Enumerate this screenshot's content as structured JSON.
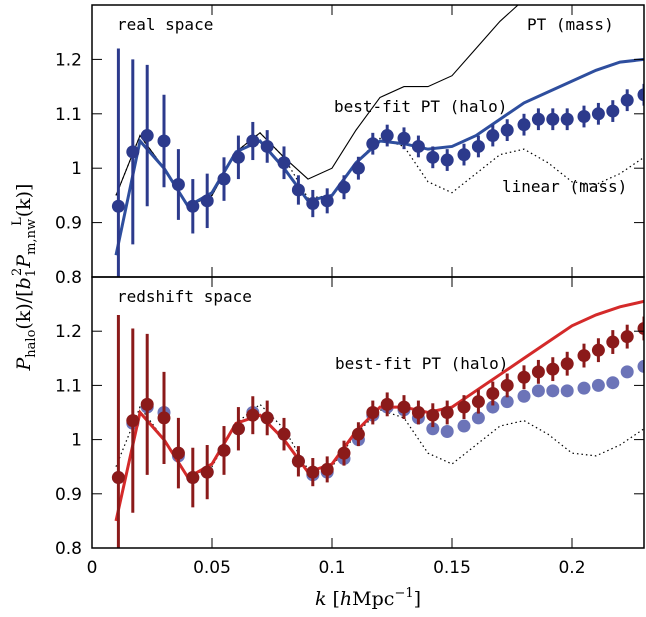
{
  "chart_data": [
    {
      "type": "line",
      "label": "real space",
      "ylabel": [
        "P",
        "halo",
        "(k)/[",
        "b",
        "1",
        "2",
        "P",
        "m,nw",
        "L",
        "(k)]"
      ],
      "xlim": [
        0,
        0.23
      ],
      "ylim": [
        0.8,
        1.3
      ],
      "xticks": [
        0,
        0.05,
        0.1,
        0.15,
        0.2
      ],
      "yticks": [
        0.8,
        0.9,
        1,
        1.1,
        1.2
      ],
      "series": [
        {
          "name": "PT (mass)",
          "color": "#000000",
          "style": "line",
          "x": [
            0.01,
            0.02,
            0.03,
            0.04,
            0.05,
            0.06,
            0.07,
            0.08,
            0.09,
            0.1,
            0.11,
            0.12,
            0.13,
            0.14,
            0.15,
            0.16,
            0.17,
            0.18
          ],
          "values": [
            0.95,
            1.06,
            1.0,
            0.93,
            0.95,
            1.03,
            1.065,
            1.02,
            0.98,
            1.0,
            1.07,
            1.13,
            1.15,
            1.15,
            1.17,
            1.22,
            1.27,
            1.31
          ]
        },
        {
          "name": "linear (mass)",
          "color": "#000000",
          "style": "dotted",
          "x": [
            0.01,
            0.02,
            0.03,
            0.04,
            0.05,
            0.06,
            0.07,
            0.08,
            0.09,
            0.1,
            0.11,
            0.12,
            0.13,
            0.14,
            0.15,
            0.16,
            0.17,
            0.18,
            0.19,
            0.2,
            0.21,
            0.22,
            0.23
          ],
          "values": [
            0.95,
            1.06,
            1.0,
            0.93,
            0.95,
            1.03,
            1.065,
            1.02,
            0.945,
            0.95,
            1.01,
            1.055,
            1.04,
            0.975,
            0.955,
            0.99,
            1.025,
            1.035,
            1.01,
            0.975,
            0.97,
            0.99,
            1.02
          ]
        },
        {
          "name": "best-fit PT (halo)",
          "color": "#2e4e9e",
          "style": "line",
          "x": [
            0.01,
            0.02,
            0.03,
            0.04,
            0.05,
            0.06,
            0.07,
            0.08,
            0.09,
            0.1,
            0.11,
            0.12,
            0.13,
            0.14,
            0.15,
            0.16,
            0.17,
            0.18,
            0.19,
            0.2,
            0.21,
            0.22,
            0.23
          ],
          "values": [
            0.84,
            1.05,
            1.0,
            0.93,
            0.955,
            1.03,
            1.05,
            1.0,
            0.94,
            0.95,
            1.01,
            1.05,
            1.045,
            1.035,
            1.04,
            1.06,
            1.09,
            1.12,
            1.14,
            1.16,
            1.18,
            1.195,
            1.2
          ]
        },
        {
          "color": "#2c3a8c",
          "style": "points",
          "x": [
            0.011,
            0.017,
            0.023,
            0.03,
            0.036,
            0.042,
            0.048,
            0.055,
            0.061,
            0.067,
            0.073,
            0.08,
            0.086,
            0.092,
            0.098,
            0.105,
            0.111,
            0.117,
            0.123,
            0.13,
            0.136,
            0.142,
            0.148,
            0.155,
            0.161,
            0.167,
            0.173,
            0.18,
            0.186,
            0.192,
            0.198,
            0.205,
            0.211,
            0.217,
            0.223,
            0.23
          ],
          "values": [
            0.93,
            1.03,
            1.06,
            1.05,
            0.97,
            0.93,
            0.94,
            0.98,
            1.02,
            1.05,
            1.04,
            1.01,
            0.96,
            0.935,
            0.94,
            0.965,
            1.0,
            1.045,
            1.06,
            1.055,
            1.04,
            1.02,
            1.015,
            1.025,
            1.04,
            1.06,
            1.07,
            1.08,
            1.09,
            1.09,
            1.09,
            1.095,
            1.1,
            1.105,
            1.125,
            1.135
          ],
          "errors": [
            0.29,
            0.17,
            0.13,
            0.085,
            0.065,
            0.05,
            0.05,
            0.04,
            0.04,
            0.035,
            0.03,
            0.03,
            0.027,
            0.025,
            0.023,
            0.022,
            0.021,
            0.02,
            0.02,
            0.02,
            0.02,
            0.02,
            0.02,
            0.02,
            0.02,
            0.02,
            0.02,
            0.02,
            0.02,
            0.02,
            0.02,
            0.02,
            0.02,
            0.02,
            0.02,
            0.02
          ]
        }
      ]
    },
    {
      "type": "line",
      "label": "redshift space",
      "xlabel": [
        "k",
        " [",
        "h",
        "Mpc",
        "−1",
        "]"
      ],
      "xlim": [
        0,
        0.23
      ],
      "ylim": [
        0.8,
        1.3
      ],
      "xticks": [
        0,
        0.05,
        0.1,
        0.15,
        0.2
      ],
      "yticks": [
        0.8,
        0.9,
        1,
        1.1,
        1.2
      ],
      "series": [
        {
          "color": "#000000",
          "style": "dotted",
          "x": [
            0.01,
            0.02,
            0.03,
            0.04,
            0.05,
            0.06,
            0.07,
            0.08,
            0.09,
            0.1,
            0.11,
            0.12,
            0.13,
            0.14,
            0.15,
            0.16,
            0.17,
            0.18,
            0.19,
            0.2,
            0.21,
            0.22,
            0.23
          ],
          "values": [
            0.95,
            1.06,
            1.0,
            0.93,
            0.95,
            1.03,
            1.065,
            1.02,
            0.945,
            0.95,
            1.01,
            1.055,
            1.04,
            0.975,
            0.955,
            0.99,
            1.025,
            1.035,
            1.01,
            0.975,
            0.97,
            0.99,
            1.02
          ]
        },
        {
          "color": "#6c74b8",
          "style": "points",
          "x": [
            0.011,
            0.017,
            0.023,
            0.03,
            0.036,
            0.042,
            0.048,
            0.055,
            0.061,
            0.067,
            0.073,
            0.08,
            0.086,
            0.092,
            0.098,
            0.105,
            0.111,
            0.117,
            0.123,
            0.13,
            0.136,
            0.142,
            0.148,
            0.155,
            0.161,
            0.167,
            0.173,
            0.18,
            0.186,
            0.192,
            0.198,
            0.205,
            0.211,
            0.217,
            0.223,
            0.23
          ],
          "values": [
            0.93,
            1.03,
            1.06,
            1.05,
            0.97,
            0.93,
            0.94,
            0.98,
            1.02,
            1.05,
            1.04,
            1.01,
            0.96,
            0.935,
            0.94,
            0.965,
            1.0,
            1.045,
            1.06,
            1.055,
            1.04,
            1.02,
            1.015,
            1.025,
            1.04,
            1.06,
            1.07,
            1.08,
            1.09,
            1.09,
            1.09,
            1.095,
            1.1,
            1.105,
            1.125,
            1.135
          ]
        },
        {
          "name": "best-fit PT (halo)",
          "color": "#d42a2a",
          "style": "line",
          "x": [
            0.01,
            0.02,
            0.03,
            0.04,
            0.05,
            0.06,
            0.07,
            0.08,
            0.09,
            0.1,
            0.11,
            0.12,
            0.13,
            0.14,
            0.15,
            0.16,
            0.17,
            0.18,
            0.19,
            0.2,
            0.21,
            0.22,
            0.23
          ],
          "values": [
            0.85,
            1.05,
            1.0,
            0.93,
            0.955,
            1.03,
            1.045,
            1.0,
            0.94,
            0.955,
            1.015,
            1.06,
            1.06,
            1.05,
            1.06,
            1.09,
            1.12,
            1.15,
            1.18,
            1.21,
            1.23,
            1.245,
            1.255
          ]
        },
        {
          "color": "#8b1a1a",
          "style": "points",
          "x": [
            0.011,
            0.017,
            0.023,
            0.03,
            0.036,
            0.042,
            0.048,
            0.055,
            0.061,
            0.067,
            0.073,
            0.08,
            0.086,
            0.092,
            0.098,
            0.105,
            0.111,
            0.117,
            0.123,
            0.13,
            0.136,
            0.142,
            0.148,
            0.155,
            0.161,
            0.167,
            0.173,
            0.18,
            0.186,
            0.192,
            0.198,
            0.205,
            0.211,
            0.217,
            0.223,
            0.23
          ],
          "values": [
            0.93,
            1.035,
            1.065,
            1.04,
            0.975,
            0.93,
            0.94,
            0.98,
            1.02,
            1.045,
            1.04,
            1.01,
            0.96,
            0.94,
            0.945,
            0.975,
            1.01,
            1.05,
            1.065,
            1.06,
            1.05,
            1.045,
            1.05,
            1.06,
            1.07,
            1.085,
            1.1,
            1.115,
            1.125,
            1.13,
            1.14,
            1.155,
            1.165,
            1.18,
            1.19,
            1.205
          ],
          "errors": [
            0.3,
            0.17,
            0.13,
            0.085,
            0.065,
            0.055,
            0.05,
            0.045,
            0.04,
            0.035,
            0.032,
            0.03,
            0.028,
            0.026,
            0.024,
            0.023,
            0.022,
            0.022,
            0.022,
            0.022,
            0.022,
            0.022,
            0.022,
            0.022,
            0.022,
            0.022,
            0.022,
            0.022,
            0.022,
            0.022,
            0.022,
            0.022,
            0.022,
            0.022,
            0.022,
            0.022
          ]
        }
      ]
    }
  ]
}
